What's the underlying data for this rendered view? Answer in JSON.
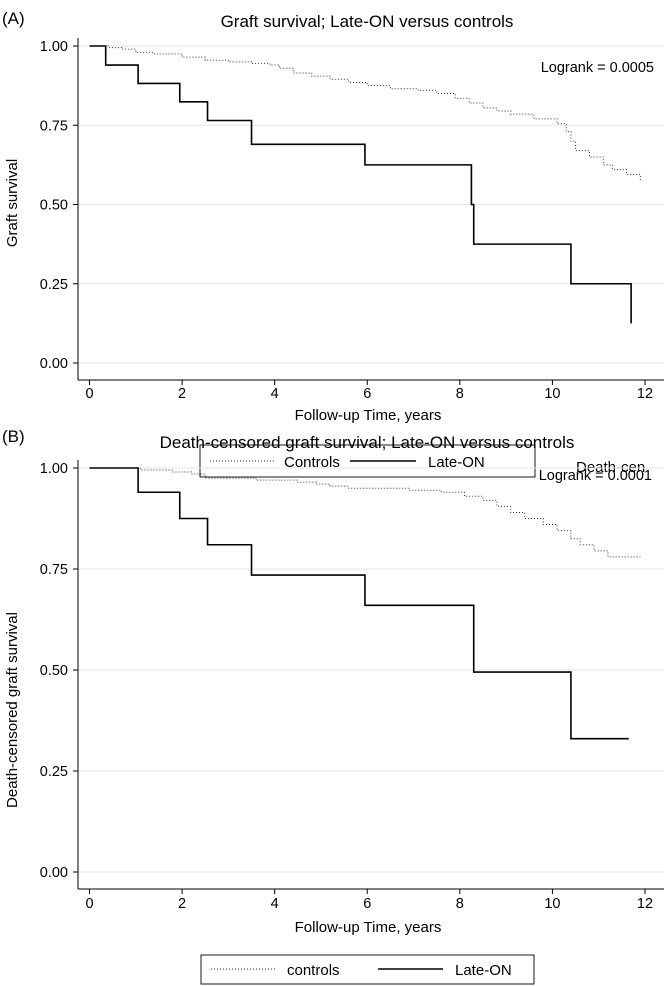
{
  "chart_data": [
    {
      "type": "line",
      "panel_label": "(A)",
      "title": "Graft survival; Late-ON versus controls",
      "xlabel": "Follow-up Time, years",
      "ylabel": "Graft survival",
      "xlim": [
        0,
        12
      ],
      "ylim": [
        0,
        1
      ],
      "xticks": [
        0,
        2,
        4,
        6,
        8,
        10,
        12
      ],
      "yticks": [
        "0.00",
        "0.25",
        "0.50",
        "0.75",
        "1.00"
      ],
      "grid": true,
      "legend_position": "bottom",
      "annotation": "Logrank = 0.0005",
      "overflow_text": "Death-cen",
      "series": [
        {
          "name": "Controls",
          "style": "dotted",
          "steps": [
            [
              0,
              1.0
            ],
            [
              0.4,
              0.995
            ],
            [
              0.7,
              0.99
            ],
            [
              1.0,
              0.98
            ],
            [
              1.4,
              0.975
            ],
            [
              2.0,
              0.965
            ],
            [
              2.5,
              0.955
            ],
            [
              3.0,
              0.95
            ],
            [
              3.5,
              0.945
            ],
            [
              3.9,
              0.94
            ],
            [
              4.1,
              0.93
            ],
            [
              4.4,
              0.915
            ],
            [
              4.8,
              0.905
            ],
            [
              5.2,
              0.895
            ],
            [
              5.6,
              0.885
            ],
            [
              6.0,
              0.875
            ],
            [
              6.5,
              0.865
            ],
            [
              7.1,
              0.86
            ],
            [
              7.5,
              0.85
            ],
            [
              7.9,
              0.835
            ],
            [
              8.2,
              0.82
            ],
            [
              8.5,
              0.805
            ],
            [
              8.8,
              0.795
            ],
            [
              9.1,
              0.785
            ],
            [
              9.6,
              0.77
            ],
            [
              10.1,
              0.755
            ],
            [
              10.3,
              0.73
            ],
            [
              10.4,
              0.7
            ],
            [
              10.5,
              0.67
            ],
            [
              10.8,
              0.65
            ],
            [
              11.1,
              0.625
            ],
            [
              11.3,
              0.61
            ],
            [
              11.6,
              0.595
            ],
            [
              11.9,
              0.57
            ]
          ],
          "end": 11.9
        },
        {
          "name": "Late-ON",
          "style": "solid",
          "steps": [
            [
              0,
              1.0
            ],
            [
              0.35,
              0.94
            ],
            [
              1.05,
              0.882
            ],
            [
              1.95,
              0.824
            ],
            [
              2.55,
              0.765
            ],
            [
              3.5,
              0.69
            ],
            [
              5.95,
              0.625
            ],
            [
              8.25,
              0.5
            ],
            [
              8.3,
              0.375
            ],
            [
              10.4,
              0.25
            ],
            [
              11.7,
              0.125
            ]
          ],
          "end": 11.7
        }
      ]
    },
    {
      "type": "line",
      "panel_label": "(B)",
      "title": "Death-censored graft survival; Late-ON versus controls",
      "xlabel": "Follow-up Time, years",
      "ylabel": "Death-censored graft survival",
      "xlim": [
        0,
        12
      ],
      "ylim": [
        0,
        1
      ],
      "xticks": [
        0,
        2,
        4,
        6,
        8,
        10,
        12
      ],
      "yticks": [
        "0.00",
        "0.25",
        "0.50",
        "0.75",
        "1.00"
      ],
      "grid": true,
      "legend_position": "bottom",
      "annotation": "Logrank = 0.0001",
      "series": [
        {
          "name": "controls",
          "style": "dotted",
          "steps": [
            [
              0,
              1.0
            ],
            [
              1.1,
              0.995
            ],
            [
              1.8,
              0.99
            ],
            [
              2.2,
              0.985
            ],
            [
              2.5,
              0.975
            ],
            [
              3.6,
              0.97
            ],
            [
              4.5,
              0.965
            ],
            [
              4.9,
              0.96
            ],
            [
              5.2,
              0.955
            ],
            [
              5.6,
              0.95
            ],
            [
              6.9,
              0.945
            ],
            [
              7.6,
              0.94
            ],
            [
              8.1,
              0.93
            ],
            [
              8.5,
              0.92
            ],
            [
              8.8,
              0.905
            ],
            [
              9.1,
              0.89
            ],
            [
              9.4,
              0.875
            ],
            [
              9.8,
              0.86
            ],
            [
              10.1,
              0.845
            ],
            [
              10.4,
              0.825
            ],
            [
              10.6,
              0.81
            ],
            [
              10.9,
              0.795
            ],
            [
              11.2,
              0.78
            ]
          ],
          "end": 11.9
        },
        {
          "name": "Late-ON",
          "style": "solid",
          "steps": [
            [
              0,
              1.0
            ],
            [
              1.05,
              0.94
            ],
            [
              1.95,
              0.875
            ],
            [
              2.55,
              0.81
            ],
            [
              3.5,
              0.735
            ],
            [
              5.95,
              0.66
            ],
            [
              8.3,
              0.495
            ],
            [
              10.4,
              0.33
            ]
          ],
          "end": 11.65
        }
      ]
    }
  ]
}
